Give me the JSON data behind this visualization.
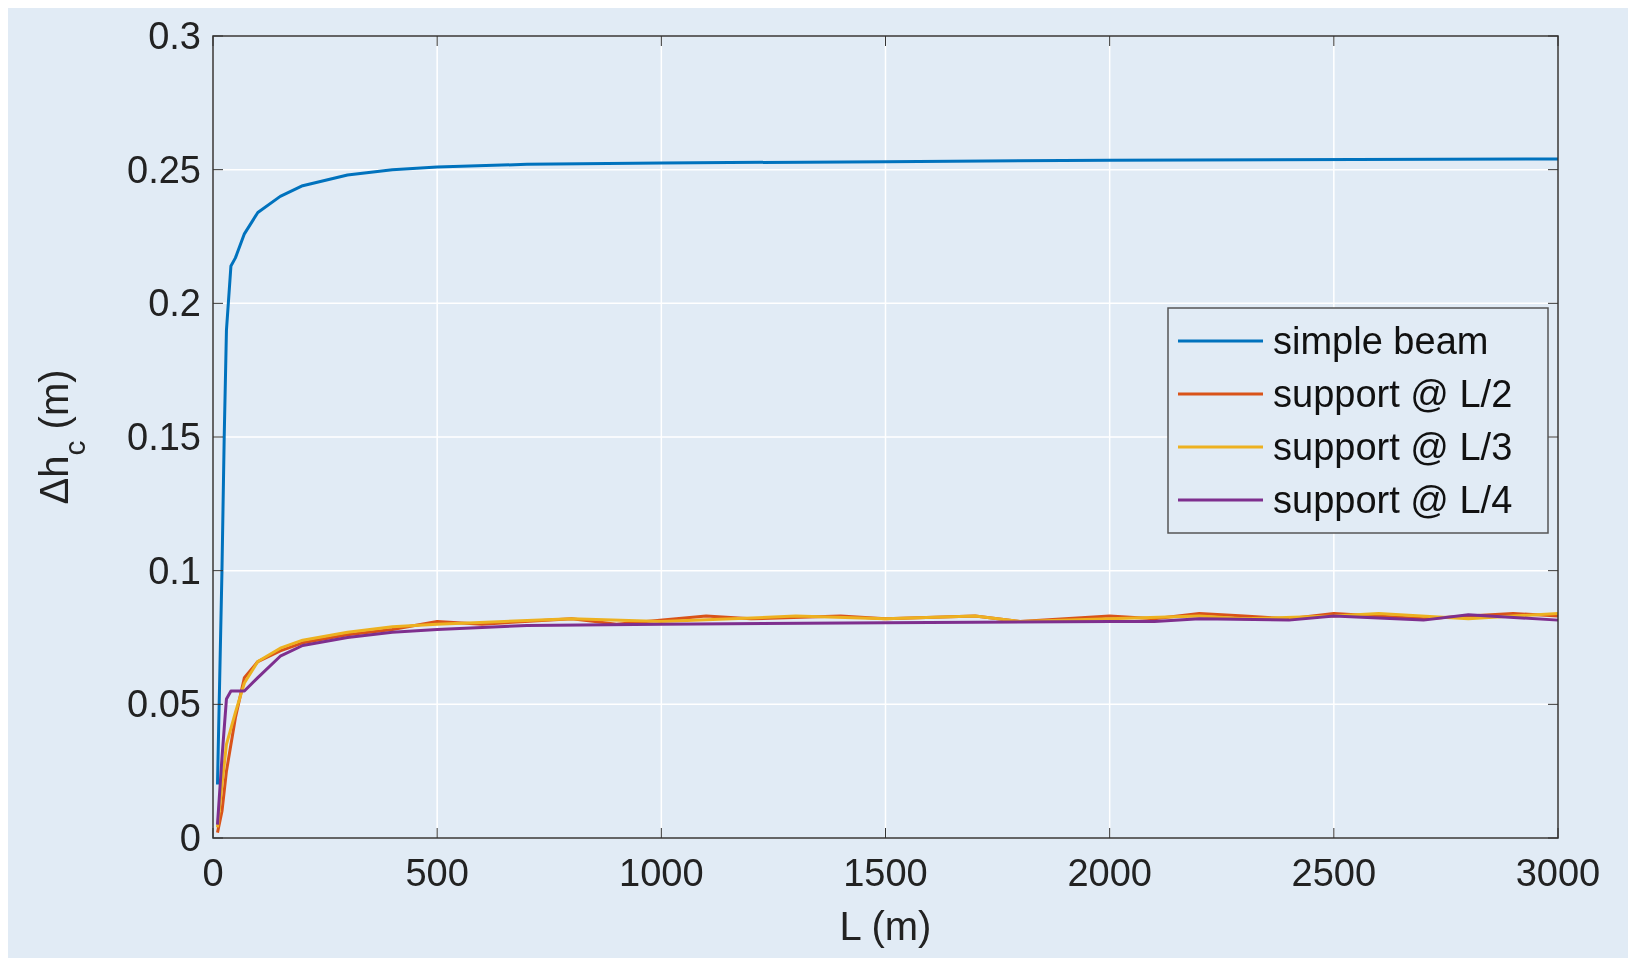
{
  "chart_data": {
    "type": "line",
    "xlabel": "L (m)",
    "ylabel": "Δh$_{c}$ (m)",
    "xlim": [
      0,
      3000
    ],
    "xticks": [
      0,
      500,
      1000,
      1500,
      2000,
      2500,
      3000
    ],
    "ylim": [
      0,
      0.3
    ],
    "yticks": [
      0,
      0.05,
      0.1,
      0.15,
      0.2,
      0.25,
      0.3
    ],
    "grid": true,
    "legend": "right",
    "line_style": "solid",
    "series": [
      {
        "name": "simple beam",
        "color": "#0072bd",
        "x": [
          10,
          20,
          25,
          30,
          40,
          50,
          70,
          100,
          150,
          200,
          300,
          400,
          500,
          700,
          1000,
          1500,
          2000,
          3000
        ],
        "values": [
          0.02,
          0.1,
          0.15,
          0.19,
          0.214,
          0.217,
          0.226,
          0.234,
          0.24,
          0.244,
          0.248,
          0.25,
          0.251,
          0.252,
          0.2525,
          0.253,
          0.2535,
          0.254
        ]
      },
      {
        "name": "support @ L/2",
        "color": "#d95319",
        "x": [
          10,
          20,
          30,
          50,
          70,
          100,
          150,
          200,
          300,
          400,
          500,
          600,
          800,
          900,
          1100,
          1200,
          1400,
          1500,
          1700,
          1800,
          2000,
          2100,
          2200,
          2300,
          2400,
          2500,
          2700,
          2800,
          2900,
          3000
        ],
        "values": [
          0.002,
          0.01,
          0.025,
          0.045,
          0.06,
          0.066,
          0.07,
          0.073,
          0.076,
          0.078,
          0.081,
          0.08,
          0.082,
          0.08,
          0.083,
          0.082,
          0.083,
          0.082,
          0.083,
          0.081,
          0.083,
          0.082,
          0.084,
          0.083,
          0.082,
          0.084,
          0.082,
          0.083,
          0.084,
          0.083
        ]
      },
      {
        "name": "support @ L/3",
        "color": "#edb120",
        "x": [
          10,
          20,
          30,
          50,
          70,
          100,
          150,
          200,
          300,
          400,
          500,
          800,
          1000,
          1300,
          1500,
          1700,
          1800,
          2000,
          2200,
          2300,
          2500,
          2600,
          2800,
          3000
        ],
        "values": [
          0.004,
          0.02,
          0.035,
          0.047,
          0.058,
          0.066,
          0.071,
          0.074,
          0.077,
          0.079,
          0.08,
          0.082,
          0.081,
          0.083,
          0.082,
          0.083,
          0.081,
          0.082,
          0.083,
          0.082,
          0.083,
          0.084,
          0.082,
          0.084
        ]
      },
      {
        "name": "support @ L/4",
        "color": "#7e2f8e",
        "x": [
          10,
          20,
          30,
          40,
          70,
          100,
          150,
          200,
          300,
          400,
          500,
          700,
          1000,
          1500,
          2000,
          2100,
          2200,
          2400,
          2500,
          2700,
          2800,
          3000
        ],
        "values": [
          0.005,
          0.03,
          0.052,
          0.055,
          0.055,
          0.06,
          0.068,
          0.072,
          0.075,
          0.077,
          0.078,
          0.0795,
          0.08,
          0.0805,
          0.081,
          0.081,
          0.082,
          0.0815,
          0.083,
          0.0815,
          0.0835,
          0.0815
        ]
      }
    ]
  }
}
